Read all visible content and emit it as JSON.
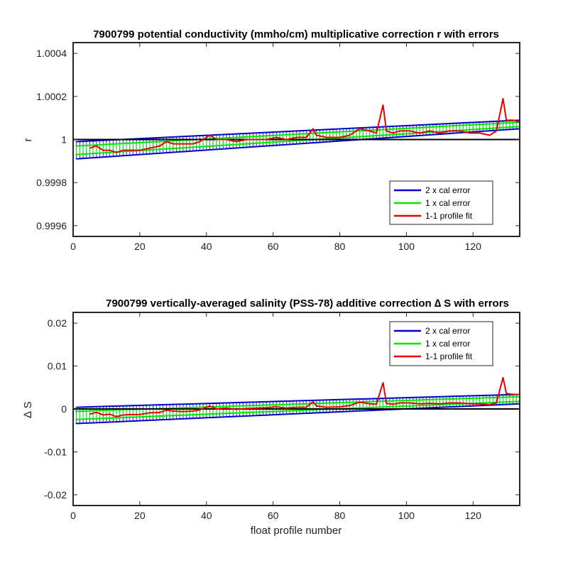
{
  "chart_data": [
    {
      "type": "line",
      "title": "7900799 potential conductivity (mmho/cm) multiplicative correction r with errors",
      "xlabel": "",
      "ylabel": "r",
      "xlim": [
        0,
        134
      ],
      "ylim": [
        0.99955,
        1.00045
      ],
      "xticks": [
        0,
        20,
        40,
        60,
        80,
        100,
        120
      ],
      "yticks": [
        0.9996,
        0.9998,
        1,
        1.0002,
        1.0004
      ],
      "ytick_labels": [
        "0.9996",
        "0.9998",
        "1",
        "1.0002",
        "1.0004"
      ],
      "grid": false,
      "legend_position": "bottom-right",
      "legend": [
        "2 x cal error",
        "1 x cal error",
        "1-1 profile fit"
      ],
      "colors": {
        "two_cal": "#0000cc",
        "one_cal": "#00e600",
        "fit": "#e60000",
        "reference": "#000000"
      },
      "reference_line": 1,
      "series": [
        {
          "name": "2 x cal error",
          "x": [
            1,
            134
          ],
          "center": [
            0.99995,
            1.00007
          ],
          "halfwidth": [
            4e-05,
            2e-05
          ]
        },
        {
          "name": "1 x cal error",
          "x": [
            1,
            134
          ],
          "center": [
            0.99995,
            1.00007
          ],
          "halfwidth": [
            2e-05,
            1e-05
          ]
        },
        {
          "name": "1-1 profile fit",
          "x": [
            5,
            7,
            9,
            11,
            13,
            15,
            17,
            20,
            23,
            26,
            28,
            30,
            33,
            36,
            38,
            41,
            43,
            46,
            49,
            52,
            55,
            58,
            61,
            64,
            67,
            70,
            72,
            73,
            76,
            80,
            83,
            86,
            89,
            91,
            93,
            94,
            96,
            98,
            101,
            104,
            107,
            110,
            113,
            116,
            119,
            122,
            125,
            127,
            129,
            130,
            132,
            134
          ],
          "y": [
            0.99996,
            0.99997,
            0.99995,
            0.99995,
            0.99994,
            0.99995,
            0.99995,
            0.99995,
            0.99996,
            0.99997,
            0.99999,
            0.99998,
            0.99998,
            0.99998,
            0.99999,
            1.00002,
            1.0,
            1.0,
            0.99999,
            1.0,
            1.0,
            1.0,
            1.00001,
            1.0,
            1.00001,
            1.00001,
            1.00005,
            1.00002,
            1.00001,
            1.00001,
            1.00002,
            1.00005,
            1.00004,
            1.00003,
            1.00016,
            1.00004,
            1.00003,
            1.00004,
            1.00004,
            1.00003,
            1.00004,
            1.00003,
            1.00004,
            1.00004,
            1.00003,
            1.00003,
            1.00002,
            1.00004,
            1.00019,
            1.00009,
            1.00009,
            1.00008
          ]
        }
      ]
    },
    {
      "type": "line",
      "title": "7900799 vertically-averaged salinity (PSS-78) additive correction ∆ S with errors",
      "xlabel": "float profile number",
      "ylabel": "∆ S",
      "xlim": [
        0,
        134
      ],
      "ylim": [
        -0.0225,
        0.0225
      ],
      "xticks": [
        0,
        20,
        40,
        60,
        80,
        100,
        120
      ],
      "yticks": [
        -0.02,
        -0.01,
        0,
        0.01,
        0.02
      ],
      "ytick_labels": [
        "-0.02",
        "-0.01",
        "0",
        "0.01",
        "0.02"
      ],
      "grid": false,
      "legend_position": "top-right",
      "legend": [
        "2 x cal error",
        "1 x cal error",
        "1-1 profile fit"
      ],
      "colors": {
        "two_cal": "#0000cc",
        "one_cal": "#00e600",
        "fit": "#e60000",
        "reference": "#000000"
      },
      "reference_line": 0,
      "series": [
        {
          "name": "2 x cal error",
          "x": [
            1,
            134
          ],
          "center": [
            -0.0015,
            0.0023
          ],
          "halfwidth": [
            0.0019,
            0.0011
          ]
        },
        {
          "name": "1 x cal error",
          "x": [
            1,
            134
          ],
          "center": [
            -0.0015,
            0.0023
          ],
          "halfwidth": [
            0.00095,
            0.00055
          ]
        },
        {
          "name": "1-1 profile fit",
          "x": [
            5,
            7,
            9,
            11,
            13,
            15,
            17,
            20,
            23,
            26,
            28,
            30,
            33,
            36,
            38,
            41,
            43,
            46,
            49,
            52,
            55,
            58,
            61,
            64,
            67,
            70,
            72,
            73,
            76,
            80,
            83,
            86,
            89,
            91,
            93,
            94,
            96,
            98,
            101,
            104,
            107,
            110,
            113,
            116,
            119,
            122,
            125,
            127,
            129,
            130,
            132,
            134
          ],
          "y": [
            -0.0012,
            -0.0008,
            -0.0014,
            -0.0012,
            -0.0018,
            -0.0014,
            -0.0013,
            -0.0013,
            -0.0009,
            -0.0008,
            -0.0003,
            -0.0005,
            -0.0006,
            -0.0005,
            -0.0002,
            0.0007,
            0.0,
            0.0002,
            -0.0001,
            0.0001,
            0.0002,
            0.0003,
            0.0005,
            0.0002,
            0.0004,
            0.0004,
            0.0017,
            0.0007,
            0.0004,
            0.0005,
            0.0008,
            0.0016,
            0.0012,
            0.0011,
            0.0061,
            0.0013,
            0.0011,
            0.0014,
            0.0014,
            0.0012,
            0.0013,
            0.0012,
            0.0014,
            0.0014,
            0.0012,
            0.0012,
            0.001,
            0.0014,
            0.0073,
            0.0036,
            0.0034,
            0.0034
          ]
        }
      ]
    }
  ]
}
